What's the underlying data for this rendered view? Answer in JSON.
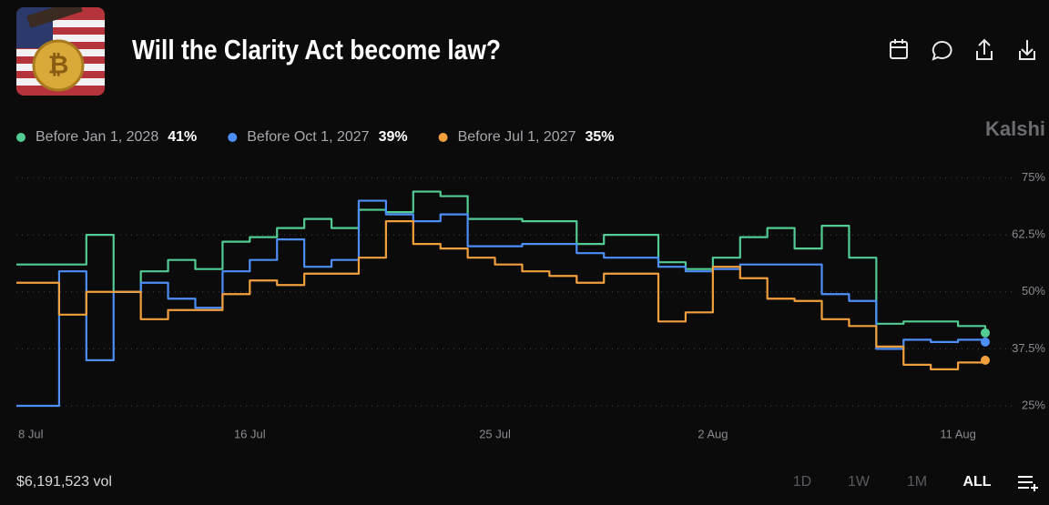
{
  "chart_data": {
    "type": "line",
    "title": "Will the Clarity Act become law?",
    "brand": "Kalshi",
    "volume": "$6,191,523 vol",
    "ranges": [
      "1D",
      "1W",
      "1M",
      "ALL"
    ],
    "active_range": "ALL",
    "x": [
      "8 Jul",
      "9 Jul",
      "10 Jul",
      "11 Jul",
      "12 Jul",
      "13 Jul",
      "14 Jul",
      "15 Jul",
      "16 Jul",
      "17 Jul",
      "18 Jul",
      "19 Jul",
      "20 Jul",
      "21 Jul",
      "22 Jul",
      "23 Jul",
      "24 Jul",
      "25 Jul",
      "26 Jul",
      "27 Jul",
      "28 Jul",
      "29 Jul",
      "30 Jul",
      "31 Jul",
      "1 Aug",
      "2 Aug",
      "3 Aug",
      "4 Aug",
      "5 Aug",
      "6 Aug",
      "7 Aug",
      "8 Aug",
      "9 Aug",
      "10 Aug",
      "11 Aug",
      "12 Aug"
    ],
    "xticks": [
      "8 Jul",
      "16 Jul",
      "25 Jul",
      "2 Aug",
      "11 Aug"
    ],
    "ylim": [
      23,
      77
    ],
    "yticks": [
      {
        "value": 25,
        "label": "25%"
      },
      {
        "value": 37.5,
        "label": "37.5%"
      },
      {
        "value": 50,
        "label": "50%"
      },
      {
        "value": 62.5,
        "label": "62.5%"
      },
      {
        "value": 75,
        "label": "75%"
      }
    ],
    "grid": true,
    "step": true,
    "series": [
      {
        "name": "Before Jan 1, 2028",
        "legend_value": "41%",
        "color": "#52cc93",
        "values": [
          56,
          56,
          62.5,
          50,
          54.5,
          57,
          55,
          61,
          62,
          64,
          66,
          64,
          68,
          67.5,
          72,
          71,
          66,
          66,
          65.5,
          65.5,
          60.5,
          62.5,
          62.5,
          56.5,
          55,
          57.5,
          62,
          64,
          59.5,
          64.5,
          57.5,
          43,
          43.5,
          43.5,
          42.5,
          41
        ]
      },
      {
        "name": "Before Oct 1, 2027",
        "legend_value": "39%",
        "color": "#4d8ef7",
        "values": [
          25,
          54.5,
          35,
          50,
          52,
          48.5,
          46.5,
          54.5,
          57,
          61.5,
          55.5,
          57,
          70,
          67,
          65.5,
          67,
          60,
          60,
          60.5,
          60.5,
          58.5,
          57.5,
          57.5,
          55.5,
          54.5,
          55,
          56,
          56,
          56,
          49.5,
          48,
          37.5,
          39.5,
          39,
          39.5,
          39
        ]
      },
      {
        "name": "Before Jul 1, 2027",
        "legend_value": "35%",
        "color": "#f2a03d",
        "values": [
          52,
          45,
          50,
          50,
          44,
          46,
          46,
          49.5,
          52.5,
          51.5,
          54,
          54,
          57.5,
          65.5,
          60.5,
          59.5,
          57.5,
          56,
          54.5,
          53.5,
          52,
          54,
          54,
          43.5,
          45.5,
          55.5,
          53,
          48.5,
          48,
          44,
          42.5,
          38,
          34,
          33,
          34.5,
          35
        ]
      }
    ]
  }
}
